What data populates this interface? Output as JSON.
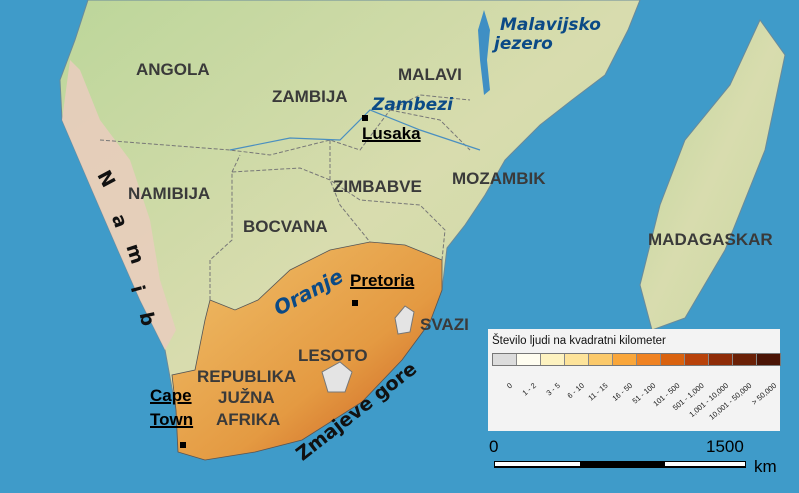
{
  "countries": [
    "ANGOLA",
    "ZAMBIJA",
    "MALAVI",
    "NAMIBIJA",
    "ZIMBABVE",
    "MOZAMBIK",
    "BOCVANA",
    "MADAGASKAR",
    "SVAZI",
    "LESOTO",
    "REPUBLIKA",
    "JUŽNA",
    "AFRIKA"
  ],
  "cities": {
    "lusaka": "Lusaka",
    "pretoria": "Pretoria",
    "cape_town_1": "Cape",
    "cape_town_2": "Town"
  },
  "water": {
    "lake": "Malavijsko jezero",
    "lake_1": "Malavijsko",
    "lake_2": "jezero",
    "zambezi": "Zambezi",
    "oranje": "Oranje"
  },
  "physical": {
    "namib": [
      "N",
      "a",
      "m",
      "i",
      "b"
    ],
    "drakensberg": "Zmajeve gore"
  },
  "legend": {
    "title": "Število ljudi na kvadratni kilometer",
    "classes": [
      {
        "label": "0",
        "color": "#dcdcdc"
      },
      {
        "label": "1 - 2",
        "color": "#fffdf0"
      },
      {
        "label": "3 - 5",
        "color": "#fdf2c0"
      },
      {
        "label": "6 - 10",
        "color": "#fde39a"
      },
      {
        "label": "11 - 15",
        "color": "#fbc96a"
      },
      {
        "label": "16 - 50",
        "color": "#f9a63a"
      },
      {
        "label": "51 - 100",
        "color": "#ef8222"
      },
      {
        "label": "101 - 500",
        "color": "#d9620f"
      },
      {
        "label": "501 - 1,000",
        "color": "#b8420a"
      },
      {
        "label": "1,001 - 10,000",
        "color": "#8e2b07"
      },
      {
        "label": "10,001 - 50,000",
        "color": "#6a2006"
      },
      {
        "label": "> 50,000",
        "color": "#4a1405"
      }
    ]
  },
  "scale": {
    "start": "0",
    "end": "1500",
    "unit": "km"
  },
  "colors": {
    "ocean": "#3f9bc9",
    "land": "#cfdba8",
    "desert": "#e8cdbd",
    "south_africa": "#e9a64a"
  }
}
